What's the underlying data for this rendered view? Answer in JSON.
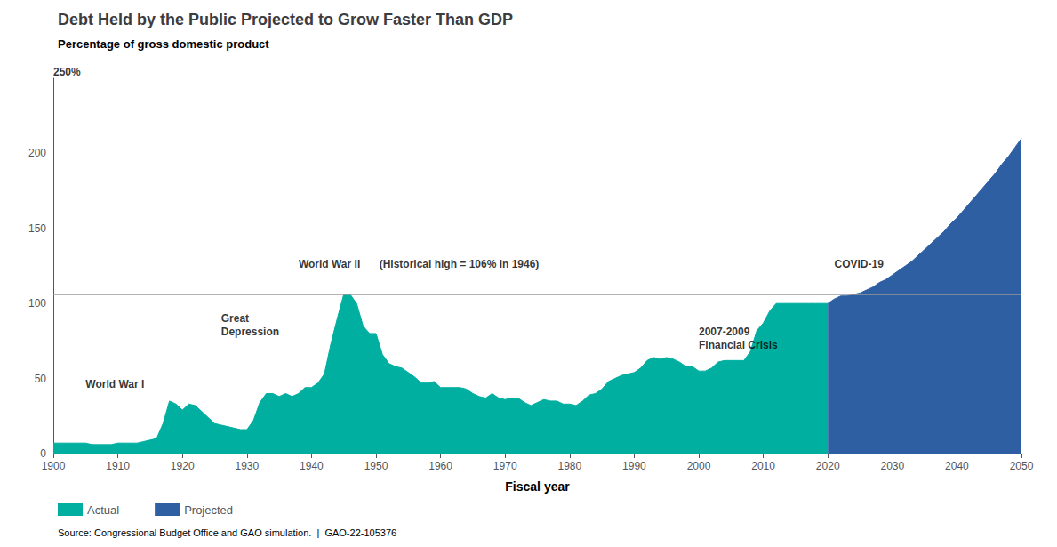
{
  "chart_data": {
    "type": "area",
    "title": "Debt Held by the Public Projected to Grow Faster Than GDP",
    "subtitle": "Percentage of gross domestic product",
    "xlabel": "Fiscal year",
    "source": "Source: Congressional Budget Office and GAO simulation.  |  GAO-22-105376",
    "series": [
      {
        "name": "Actual",
        "color": "#00AFA0",
        "x": [
          1900,
          1901,
          1902,
          1903,
          1904,
          1905,
          1906,
          1907,
          1908,
          1909,
          1910,
          1911,
          1912,
          1913,
          1914,
          1915,
          1916,
          1917,
          1918,
          1919,
          1920,
          1921,
          1922,
          1923,
          1924,
          1925,
          1926,
          1927,
          1928,
          1929,
          1930,
          1931,
          1932,
          1933,
          1934,
          1935,
          1936,
          1937,
          1938,
          1939,
          1940,
          1941,
          1942,
          1943,
          1944,
          1945,
          1946,
          1947,
          1948,
          1949,
          1950,
          1951,
          1952,
          1953,
          1954,
          1955,
          1956,
          1957,
          1958,
          1959,
          1960,
          1961,
          1962,
          1963,
          1964,
          1965,
          1966,
          1967,
          1968,
          1969,
          1970,
          1971,
          1972,
          1973,
          1974,
          1975,
          1976,
          1977,
          1978,
          1979,
          1980,
          1981,
          1982,
          1983,
          1984,
          1985,
          1986,
          1987,
          1988,
          1989,
          1990,
          1991,
          1992,
          1993,
          1994,
          1995,
          1996,
          1997,
          1998,
          1999,
          2000,
          2001,
          2002,
          2003,
          2004,
          2005,
          2006,
          2007,
          2008,
          2009,
          2010,
          2011,
          2012,
          2013,
          2014,
          2015,
          2016,
          2017,
          2018,
          2019,
          2020
        ],
        "values": [
          7,
          7,
          7,
          7,
          7,
          7,
          6,
          6,
          6,
          6,
          7,
          7,
          7,
          7,
          8,
          9,
          10,
          20,
          35,
          33,
          29,
          33,
          32,
          28,
          24,
          20,
          19,
          18,
          17,
          16,
          16,
          22,
          34,
          40,
          40,
          38,
          40,
          38,
          40,
          44,
          44,
          47,
          53,
          73,
          90,
          106,
          106,
          100,
          85,
          80,
          80,
          66,
          60,
          58,
          57,
          54,
          51,
          47,
          47,
          48,
          44,
          44,
          44,
          44,
          43,
          40,
          38,
          37,
          40,
          37,
          36,
          37,
          37,
          34,
          32,
          34,
          36,
          35,
          35,
          33,
          33,
          32,
          35,
          39,
          40,
          43,
          48,
          50,
          52,
          53,
          54,
          57,
          62,
          64,
          63,
          64,
          63,
          61,
          58,
          58,
          55,
          55,
          57,
          61,
          62,
          62,
          62,
          62,
          68,
          82,
          87,
          95,
          100,
          100,
          100,
          100,
          100,
          100,
          100,
          100,
          100
        ]
      },
      {
        "name": "Projected",
        "color": "#2E5FA3",
        "x": [
          2020,
          2021,
          2022,
          2023,
          2024,
          2025,
          2026,
          2027,
          2028,
          2029,
          2030,
          2031,
          2032,
          2033,
          2034,
          2035,
          2036,
          2037,
          2038,
          2039,
          2040,
          2041,
          2042,
          2043,
          2044,
          2045,
          2046,
          2047,
          2048,
          2049,
          2050
        ],
        "values": [
          100,
          103,
          105,
          105,
          106,
          107,
          109,
          111,
          114,
          116,
          119,
          122,
          125,
          128,
          132,
          136,
          140,
          144,
          148,
          153,
          157,
          162,
          167,
          172,
          177,
          182,
          187,
          193,
          198,
          204,
          210
        ]
      }
    ],
    "reference_lines": [
      {
        "value": 106,
        "color": "#999999"
      }
    ],
    "annotations": [
      {
        "text": "250%",
        "x": 1900,
        "y": 250
      },
      {
        "text": "World War I",
        "x": 1905,
        "y": 42
      },
      {
        "text": "Great\nDepression",
        "x": 1926,
        "y": 77
      },
      {
        "text": "World War II",
        "x": 1938,
        "y": 122
      },
      {
        "text": "(Historical high = 106% in 1946)",
        "x": 1950.5,
        "y": 122
      },
      {
        "text": "2007-2009\nFinancial Crisis",
        "x": 2000,
        "y": 68
      },
      {
        "text": "COVID-19",
        "x": 2021,
        "y": 122
      }
    ],
    "xlim": [
      1900,
      2050
    ],
    "ylim": [
      0,
      250
    ],
    "xticks": [
      1900,
      1910,
      1920,
      1930,
      1940,
      1950,
      1960,
      1970,
      1980,
      1990,
      2000,
      2010,
      2020,
      2030,
      2040,
      2050
    ],
    "yticks": [
      0,
      50,
      100,
      150,
      200
    ],
    "grid": false,
    "legend": "bottom"
  }
}
